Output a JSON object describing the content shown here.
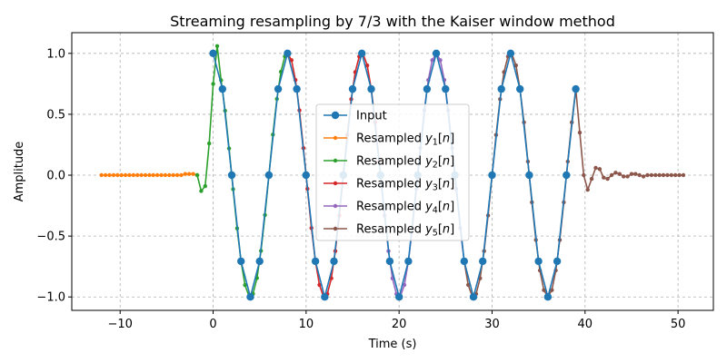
{
  "chart_data": {
    "type": "line",
    "title": "Streaming resampling by 7/3 with the Kaiser window method",
    "xlabel": "Time (s)",
    "ylabel": "Amplitude",
    "xlim": [
      -15.2,
      53.8
    ],
    "ylim": [
      -1.11,
      1.17
    ],
    "xticks": [
      -10,
      0,
      10,
      20,
      30,
      40,
      50
    ],
    "yticks": [
      -1.0,
      -0.5,
      0.0,
      0.5,
      1.0
    ],
    "xtick_labels": [
      "−10",
      "0",
      "10",
      "20",
      "30",
      "40",
      "50"
    ],
    "ytick_labels": [
      "−1.0",
      "−0.5",
      "0.0",
      "0.5",
      "1.0"
    ],
    "grid": true,
    "legend_position": "center",
    "signal": {
      "period": 8,
      "amplitude": 1.0,
      "phase_deg": 90
    },
    "input": {
      "name": "Input",
      "color": "#1f77b4",
      "x": [
        0,
        1,
        2,
        3,
        4,
        5,
        6,
        7,
        8,
        9,
        10,
        11,
        12,
        13,
        14,
        15,
        16,
        17,
        18,
        19,
        20,
        21,
        22,
        23,
        24,
        25,
        26,
        27,
        28,
        29,
        30,
        31,
        32,
        33,
        34,
        35,
        36,
        37,
        38,
        39
      ],
      "y": [
        1,
        0.707,
        0,
        -0.707,
        -1,
        -0.707,
        0,
        0.707,
        1,
        0.707,
        0,
        -0.707,
        -1,
        -0.707,
        0,
        0.707,
        1,
        0.707,
        0,
        -0.707,
        -1,
        -0.707,
        0,
        0.707,
        1,
        0.707,
        0,
        -0.707,
        -1,
        -0.707,
        0,
        0.707,
        1,
        0.707,
        0,
        -0.707,
        -1,
        -0.707,
        0,
        0.707
      ]
    },
    "series": [
      {
        "name": "Resampled",
        "sub": "1",
        "color": "#ff7f0e",
        "x_start": -12.0,
        "x_end": -1.71,
        "transient_y": [
          0,
          0,
          0,
          0,
          0,
          0,
          0,
          0,
          0,
          0,
          0,
          0,
          0,
          0,
          0,
          0,
          0,
          0,
          0,
          0,
          0,
          0.01,
          0.01,
          0.01,
          0,
          -0.01,
          0,
          0.02,
          0.02,
          0,
          -0.04,
          0,
          0.06,
          0.03
        ]
      },
      {
        "name": "Resampled",
        "sub": "2",
        "color": "#2ca02c",
        "x_start": -1.71,
        "x_end": 8.0,
        "transient_y": [
          0,
          -0.13,
          -0.09,
          0.26,
          0.75,
          1.06
        ]
      },
      {
        "name": "Resampled",
        "sub": "3",
        "color": "#d62728",
        "x_start": 8.0,
        "x_end": 18.0
      },
      {
        "name": "Resampled",
        "sub": "4",
        "color": "#9467bd",
        "x_start": 18.0,
        "x_end": 27.0
      },
      {
        "name": "Resampled",
        "sub": "5",
        "color": "#8c564b",
        "x_start": 27.0,
        "x_end": 50.6,
        "tail_start": 39.0,
        "tail_y": [
          0.71,
          0.35,
          0,
          -0.12,
          -0.03,
          0.06,
          0.05,
          -0.02,
          -0.03,
          0,
          0.02,
          0.01,
          -0.01,
          -0.01,
          0.01,
          0.01,
          0,
          -0.01,
          0,
          0,
          0,
          0,
          0,
          0,
          0,
          0,
          0,
          0
        ]
      }
    ]
  }
}
